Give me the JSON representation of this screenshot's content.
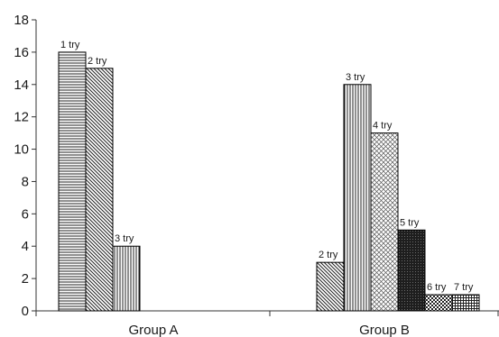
{
  "chart_data": {
    "type": "bar",
    "title": "",
    "xlabel": "",
    "ylabel": "",
    "ylim": [
      0,
      18
    ],
    "yticks": [
      0,
      2,
      4,
      6,
      8,
      10,
      12,
      14,
      16,
      18
    ],
    "grid": false,
    "legend": "none",
    "categories": [
      "Group A",
      "Group B"
    ],
    "groups": [
      {
        "category": "Group A",
        "bars": [
          {
            "label": "1 try",
            "value": 16,
            "pattern": "horizontal-lines"
          },
          {
            "label": "2 try",
            "value": 15,
            "pattern": "diagonal-lines"
          },
          {
            "label": "3 try",
            "value": 4,
            "pattern": "vertical-lines"
          }
        ]
      },
      {
        "category": "Group B",
        "bars": [
          {
            "label": "2 try",
            "value": 3,
            "pattern": "diagonal-lines"
          },
          {
            "label": "3 try",
            "value": 14,
            "pattern": "vertical-lines"
          },
          {
            "label": "4 try",
            "value": 11,
            "pattern": "crosshatch-diagonal"
          },
          {
            "label": "5 try",
            "value": 5,
            "pattern": "dense-dark"
          },
          {
            "label": "6 try",
            "value": 1,
            "pattern": "checker"
          },
          {
            "label": "7 try",
            "value": 1,
            "pattern": "grid"
          }
        ]
      }
    ],
    "colors": {
      "axis": "#333333",
      "bar_outline": "#000000",
      "pattern_ink": "#222222"
    }
  }
}
